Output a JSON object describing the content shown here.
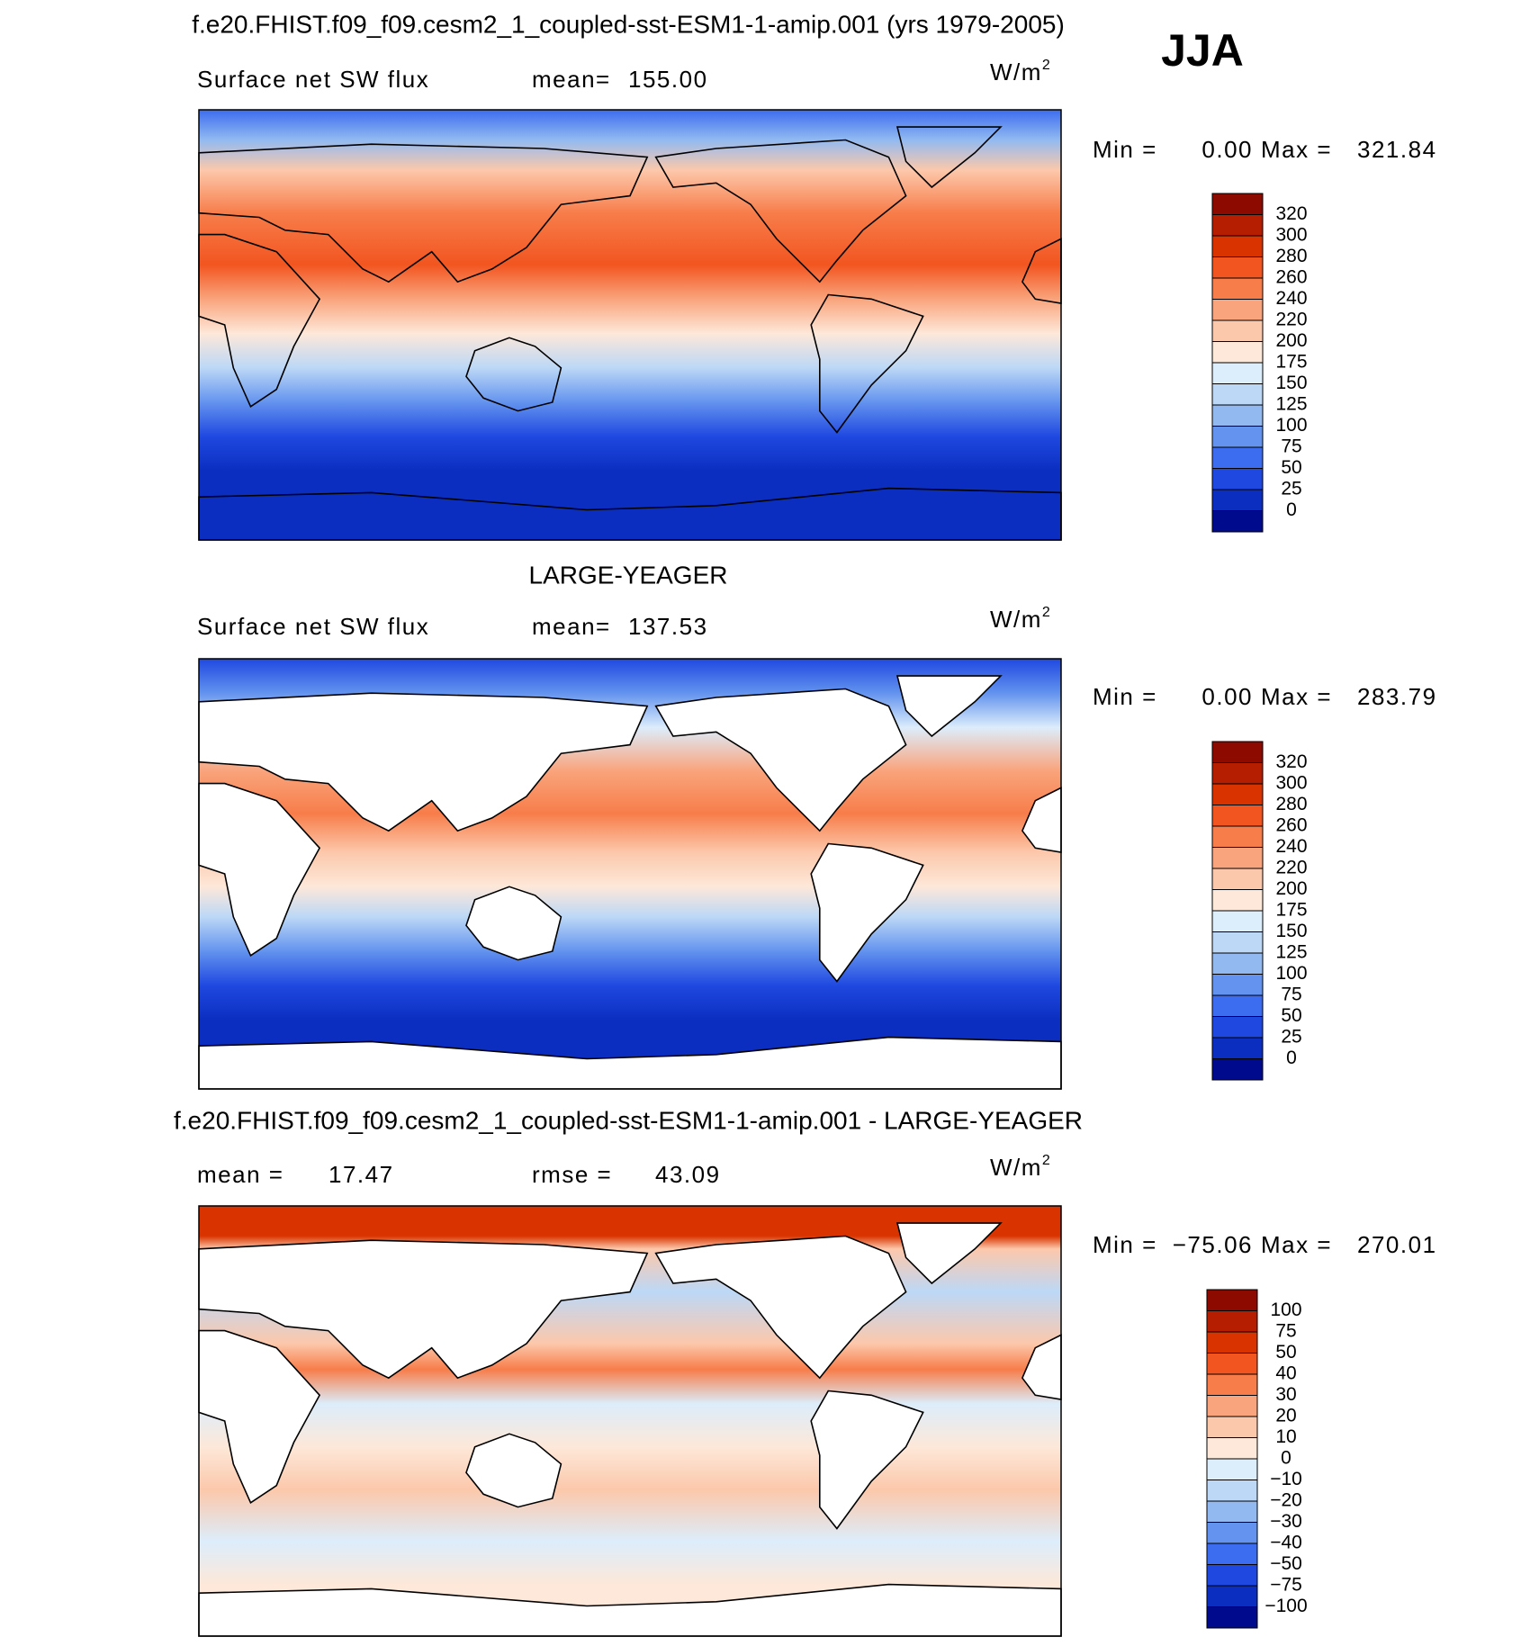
{
  "title": "f.e20.FHIST.f09_f09.cesm2_1_coupled-sst-ESM1-1-amip.001 (yrs 1979-2005)",
  "season": "JJA",
  "panels": [
    {
      "left_label": "Surface net SW flux",
      "stat_label": "mean=",
      "stat_value": "155.00",
      "units": {
        "base": "W/m",
        "sup": "2"
      },
      "min_label": "Min =",
      "min": "0.00",
      "max_label": "Max =",
      "max": "321.84",
      "colorbar": {
        "labels": [
          "320",
          "300",
          "280",
          "260",
          "240",
          "220",
          "200",
          "175",
          "150",
          "125",
          "100",
          "75",
          "50",
          "25",
          "0"
        ],
        "colors": [
          "#8c0a00",
          "#b51e00",
          "#d93400",
          "#f25520",
          "#f77d4a",
          "#f9a47c",
          "#fcc8ab",
          "#fde8d9",
          "#dcedfb",
          "#bcd8f6",
          "#92baf1",
          "#6393ee",
          "#3c6cef",
          "#1f48e0",
          "#0b2ec0",
          "#000a8c"
        ]
      }
    },
    {
      "heading": "LARGE-YEAGER",
      "left_label": "Surface net SW flux",
      "stat_label": "mean=",
      "stat_value": "137.53",
      "units": {
        "base": "W/m",
        "sup": "2"
      },
      "min_label": "Min =",
      "min": "0.00",
      "max_label": "Max =",
      "max": "283.79",
      "colorbar": {
        "labels": [
          "320",
          "300",
          "280",
          "260",
          "240",
          "220",
          "200",
          "175",
          "150",
          "125",
          "100",
          "75",
          "50",
          "25",
          "0"
        ],
        "colors": [
          "#8c0a00",
          "#b51e00",
          "#d93400",
          "#f25520",
          "#f77d4a",
          "#f9a47c",
          "#fcc8ab",
          "#fde8d9",
          "#dcedfb",
          "#bcd8f6",
          "#92baf1",
          "#6393ee",
          "#3c6cef",
          "#1f48e0",
          "#0b2ec0",
          "#000a8c"
        ]
      }
    },
    {
      "heading": "f.e20.FHIST.f09_f09.cesm2_1_coupled-sst-ESM1-1-amip.001 - LARGE-YEAGER",
      "left_label": "mean =",
      "left_value": "17.47",
      "stat_label": "rmse =",
      "stat_value": "43.09",
      "units": {
        "base": "W/m",
        "sup": "2"
      },
      "min_label": "Min =",
      "min": "−75.06",
      "max_label": "Max =",
      "max": "270.01",
      "colorbar": {
        "labels": [
          "100",
          "75",
          "50",
          "40",
          "30",
          "20",
          "10",
          "0",
          "−10",
          "−20",
          "−30",
          "−40",
          "−50",
          "−75",
          "−100"
        ],
        "colors": [
          "#8c0a00",
          "#b51e00",
          "#d93400",
          "#f25520",
          "#f77d4a",
          "#f9a47c",
          "#fcc8ab",
          "#fde8d9",
          "#dcedfb",
          "#bcd8f6",
          "#92baf1",
          "#6393ee",
          "#3c6cef",
          "#1f48e0",
          "#0b2ec0",
          "#000a8c"
        ]
      }
    }
  ]
}
